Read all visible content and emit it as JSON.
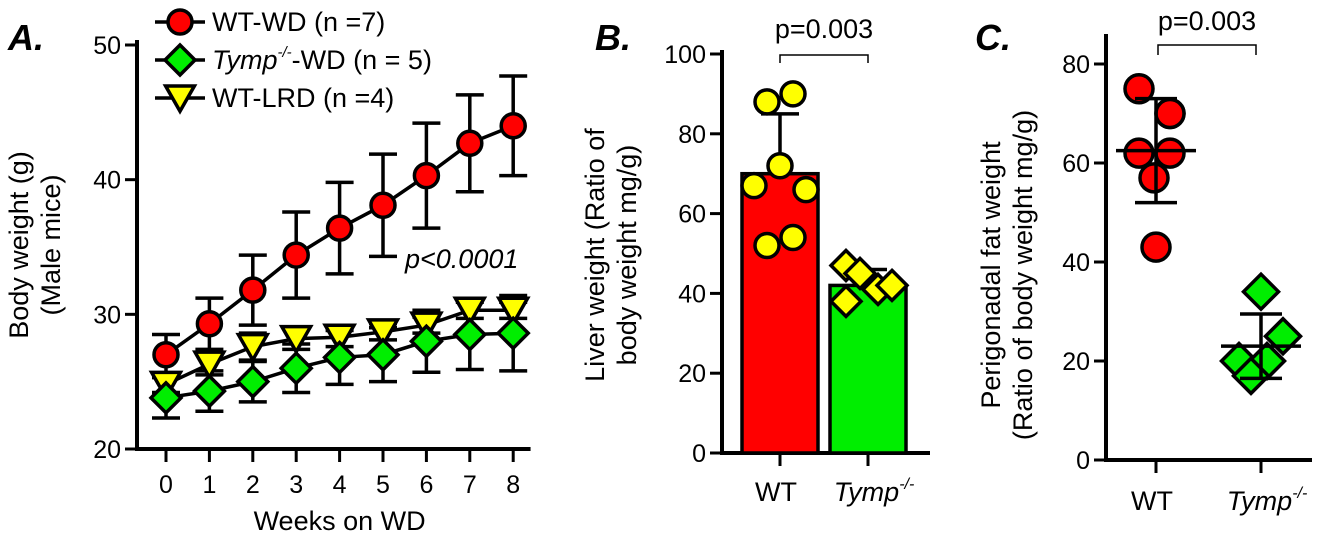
{
  "colors": {
    "wt_wd": "#ff0000",
    "tymp_wd": "#00ee00",
    "wt_lrd": "#ffff00",
    "pval_red": "#e8202a"
  },
  "chart_data": [
    {
      "panel": "A.",
      "type": "line",
      "xlabel": "Weeks on WD",
      "ylabel": "Body weight (g)",
      "ylabel2": "(Male mice)",
      "x": [
        0,
        1,
        2,
        3,
        4,
        5,
        6,
        7,
        8
      ],
      "xlim": [
        -0.5,
        8.5
      ],
      "ylim": [
        20,
        50
      ],
      "yticks": [
        20,
        30,
        40,
        50
      ],
      "annotation": "p<0.0001",
      "legend_position": "top-left",
      "series": [
        {
          "name": "WT-WD (n =7)",
          "name_parts": [
            "",
            "",
            "WT-WD (n =7)"
          ],
          "marker": "circle",
          "color": "#ff0000",
          "values": [
            27.0,
            29.3,
            31.8,
            34.4,
            36.4,
            38.1,
            40.3,
            42.7,
            44.0
          ],
          "error": [
            1.5,
            1.9,
            2.6,
            3.2,
            3.4,
            3.8,
            3.9,
            3.6,
            3.7
          ]
        },
        {
          "name": "Tymp-/--WD (n = 5)",
          "name_parts": [
            "Tymp",
            "-/-",
            "-WD (n = 5)"
          ],
          "marker": "diamond",
          "color": "#00ee00",
          "values": [
            23.8,
            24.3,
            25.0,
            26.0,
            26.8,
            27.0,
            28.0,
            28.5,
            28.6
          ],
          "error": [
            1.5,
            1.5,
            1.5,
            1.8,
            2.0,
            2.0,
            2.3,
            2.6,
            2.8
          ]
        },
        {
          "name": "WT-LRD (n =4)",
          "name_parts": [
            "",
            "",
            "WT-LRD (n =4)"
          ],
          "marker": "triangle-down",
          "color": "#ffff00",
          "values": [
            24.8,
            26.3,
            27.6,
            28.2,
            28.3,
            28.7,
            29.2,
            30.3,
            30.3
          ],
          "error": [
            0.6,
            0.8,
            1.0,
            0.8,
            0.7,
            0.6,
            0.6,
            0.6,
            0.6
          ]
        }
      ]
    },
    {
      "panel": "B.",
      "type": "bar",
      "ylabel": "Liver weight (Ratio of",
      "ylabel2": "body weight mg/g)",
      "ylim": [
        0,
        100
      ],
      "yticks": [
        0,
        20,
        40,
        60,
        80,
        100
      ],
      "annotation": "p=0.003",
      "categories": [
        {
          "label": "WT",
          "italic": false,
          "sup": ""
        },
        {
          "label": "Tymp",
          "italic": true,
          "sup": "-/-"
        }
      ],
      "values": [
        70,
        42
      ],
      "error": [
        15,
        4
      ],
      "bar_colors": [
        "#ff0000",
        "#00ee00"
      ],
      "points": [
        [
          88,
          90,
          72,
          67,
          66,
          52,
          54
        ],
        [
          47,
          45,
          41,
          42,
          38
        ]
      ],
      "point_markers": [
        "circle",
        "diamond"
      ],
      "point_color": "#ffff00"
    },
    {
      "panel": "C.",
      "type": "scatter",
      "ylabel": "Perigonadal fat weight",
      "ylabel2": "(Ratio of body weight mg/g)",
      "ylim": [
        0,
        85
      ],
      "yticks": [
        0,
        20,
        40,
        60,
        80
      ],
      "annotation": "p=0.003",
      "categories": [
        {
          "label": "WT",
          "italic": false,
          "sup": ""
        },
        {
          "label": "Tymp",
          "italic": true,
          "sup": "-/-"
        }
      ],
      "means": [
        62.5,
        23
      ],
      "sd": [
        10.5,
        6.5
      ],
      "points": [
        [
          75,
          70,
          70,
          62,
          62,
          57,
          43
        ],
        [
          34,
          25,
          20,
          20,
          17
        ]
      ],
      "point_markers": [
        "circle",
        "diamond"
      ],
      "point_colors": [
        "#ff0000",
        "#00ee00"
      ]
    }
  ]
}
